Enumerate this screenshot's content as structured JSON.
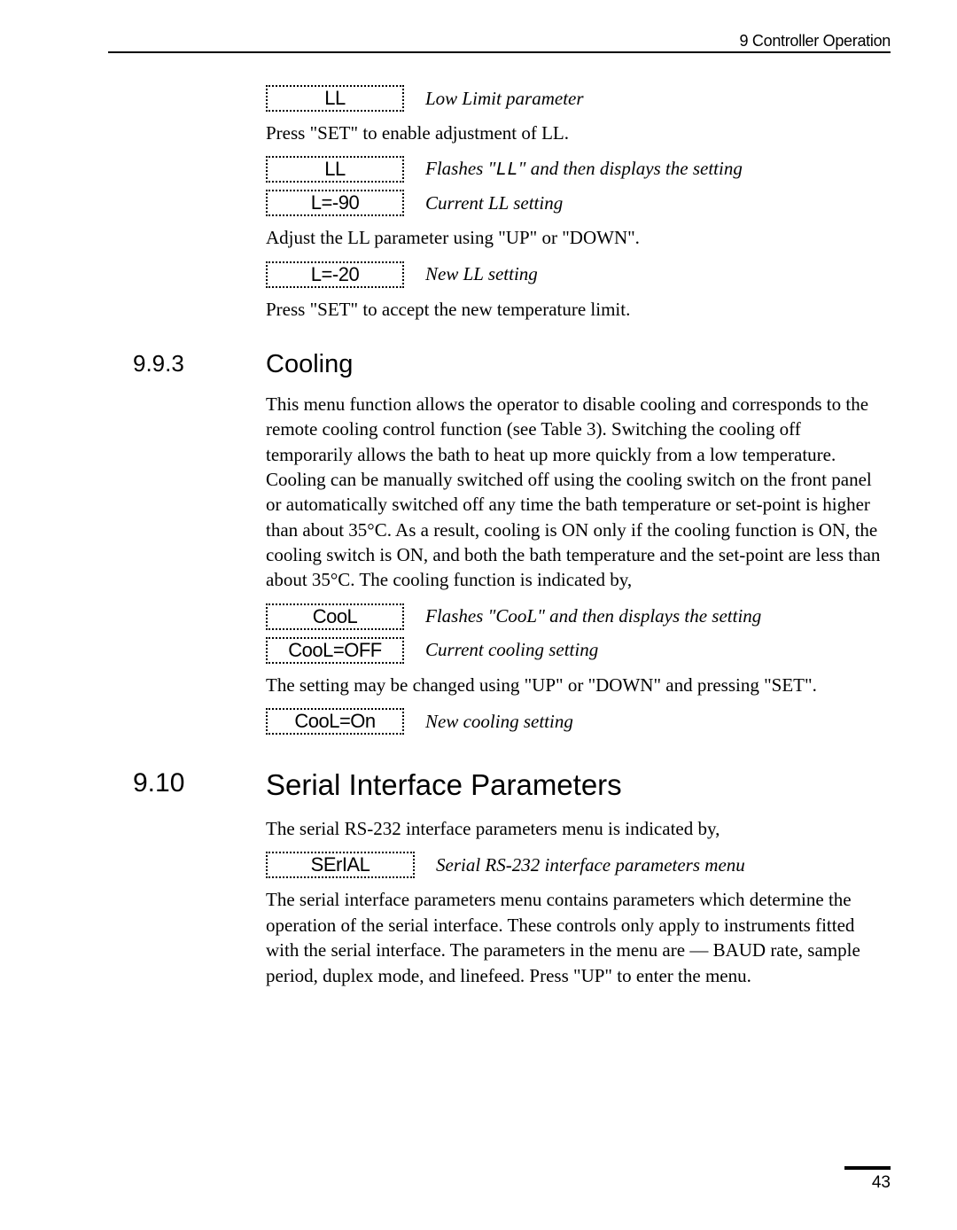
{
  "header": {
    "chapter": "9 Controller Operation"
  },
  "rows": [
    {
      "lcd": "LL",
      "desc": "Low Limit parameter"
    }
  ],
  "para1": "Press \"SET\" to enable adjustment of LL.",
  "rows2": [
    {
      "lcd": "LL",
      "desc_pre": "Flashes \"",
      "mono": "LL",
      "desc_post": "\" and then displays the setting"
    },
    {
      "lcd": "L=-90",
      "desc": "Current LL setting"
    }
  ],
  "para2": "Adjust the LL parameter using \"UP\" or \"DOWN\".",
  "rows3": [
    {
      "lcd": "L=-20",
      "desc": "New LL setting"
    }
  ],
  "para3": "Press \"SET\" to accept the new temperature limit.",
  "sec993": {
    "num": "9.9.3",
    "title": "Cooling"
  },
  "cooling_para": "This menu function allows the operator to disable cooling and corresponds to the remote cooling control function (see Table 3). Switching the cooling off temporarily allows the bath to heat up more quickly from a low temperature. Cooling can be manually switched off using the cooling switch on the front panel or automatically switched off any time the bath temperature or set-point is higher than about 35°C. As a result, cooling is ON only if the cooling function is ON, the cooling switch is ON, and both the bath temperature and the set-point are less than about 35°C. The cooling function is indicated by,",
  "rows4": [
    {
      "lcd": "CooL",
      "desc": "Flashes \"CooL\" and then displays the setting"
    },
    {
      "lcd": "CooL=OFF",
      "desc": "Current cooling setting"
    }
  ],
  "para4": "The setting may be changed using \"UP\" or \"DOWN\" and pressing \"SET\".",
  "rows5": [
    {
      "lcd": "CooL=On",
      "desc": "New cooling setting"
    }
  ],
  "sec910": {
    "num": "9.10",
    "title": "Serial Interface Parameters"
  },
  "serial_intro": "The serial RS-232 interface parameters menu is indicated by,",
  "rows6": [
    {
      "lcd": "SErIAL",
      "desc": "Serial RS-232 interface parameters menu"
    }
  ],
  "serial_para": "The serial interface parameters menu contains parameters which determine the operation of the serial interface. These controls only apply to instruments fitted with the serial interface. The parameters in the menu are — BAUD rate, sample period, duplex mode, and linefeed. Press \"UP\" to enter the menu.",
  "page_number": "43"
}
